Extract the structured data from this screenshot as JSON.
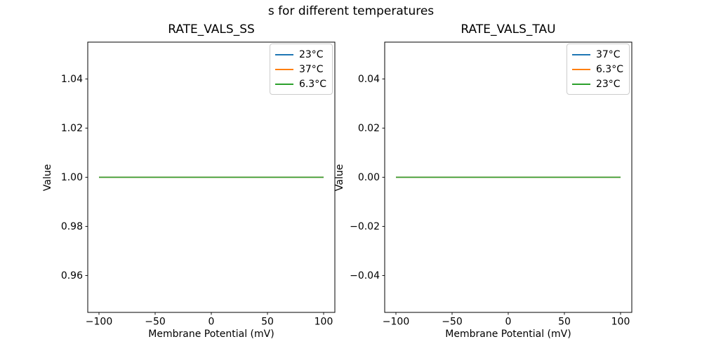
{
  "figure": {
    "suptitle": "s for different temperatures",
    "background": "#ffffff"
  },
  "chart_data": [
    {
      "type": "line",
      "title": "RATE_VALS_SS",
      "xlabel": "Membrane Potential (mV)",
      "ylabel": "Value",
      "grid": false,
      "legend_position": "upper right",
      "xlim": [
        -110,
        110
      ],
      "ylim": [
        0.945,
        1.055
      ],
      "xticks": [
        -100,
        -50,
        0,
        50,
        100
      ],
      "xtick_labels": [
        "−100",
        "−50",
        "0",
        "50",
        "100"
      ],
      "yticks": [
        0.96,
        0.98,
        1.0,
        1.02,
        1.04
      ],
      "ytick_labels": [
        "0.96",
        "0.98",
        "1.00",
        "1.02",
        "1.04"
      ],
      "x": [
        -100,
        100
      ],
      "series": [
        {
          "name": "23°C",
          "color": "#1f77b4",
          "values": [
            1.0,
            1.0
          ]
        },
        {
          "name": "37°C",
          "color": "#ff7f0e",
          "values": [
            1.0,
            1.0
          ]
        },
        {
          "name": "6.3°C",
          "color": "#2ca02c",
          "values": [
            1.0,
            1.0
          ]
        }
      ]
    },
    {
      "type": "line",
      "title": "RATE_VALS_TAU",
      "xlabel": "Membrane Potential (mV)",
      "ylabel": "Value",
      "grid": false,
      "legend_position": "upper right",
      "xlim": [
        -110,
        110
      ],
      "ylim": [
        -0.055,
        0.055
      ],
      "xticks": [
        -100,
        -50,
        0,
        50,
        100
      ],
      "xtick_labels": [
        "−100",
        "−50",
        "0",
        "50",
        "100"
      ],
      "yticks": [
        -0.04,
        -0.02,
        0.0,
        0.02,
        0.04
      ],
      "ytick_labels": [
        "−0.04",
        "−0.02",
        "0.00",
        "0.02",
        "0.04"
      ],
      "x": [
        -100,
        100
      ],
      "series": [
        {
          "name": "37°C",
          "color": "#1f77b4",
          "values": [
            0.0,
            0.0
          ]
        },
        {
          "name": "6.3°C",
          "color": "#ff7f0e",
          "values": [
            0.0,
            0.0
          ]
        },
        {
          "name": "23°C",
          "color": "#2ca02c",
          "values": [
            0.0,
            0.0
          ]
        }
      ]
    }
  ]
}
